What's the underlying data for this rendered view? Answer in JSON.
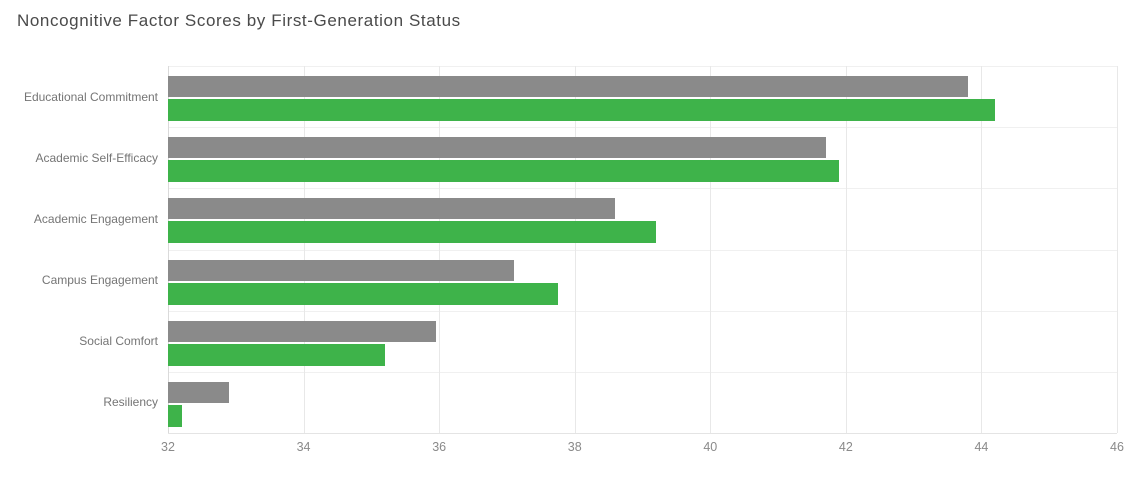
{
  "page": {
    "background": "#ffffff"
  },
  "chart_data": {
    "type": "bar",
    "orientation": "horizontal",
    "title": "Noncognitive Factor Scores by First-Generation Status",
    "categories": [
      "Educational Commitment",
      "Academic Self-Efficacy",
      "Academic Engagement",
      "Campus Engagement",
      "Social Comfort",
      "Resiliency"
    ],
    "series": [
      {
        "name": "gray",
        "color": "#8a8a8a",
        "values": [
          43.8,
          41.7,
          38.6,
          37.1,
          35.95,
          32.9
        ]
      },
      {
        "name": "green",
        "color": "#3eb34a",
        "values": [
          44.2,
          41.9,
          39.2,
          37.75,
          35.2,
          32.2
        ]
      }
    ],
    "xlabel": "",
    "ylabel": "",
    "xlim": [
      32,
      46
    ],
    "xticks": [
      32,
      34,
      36,
      38,
      40,
      42,
      44,
      46
    ],
    "grid": true,
    "legend_position": "none",
    "colors": {
      "title_text": "#4a4a4a",
      "axis_label_text": "#8a8a8a",
      "category_label_text": "#757575",
      "gridline": "#e8e8e8",
      "band_separator": "#f0f0f0"
    }
  }
}
